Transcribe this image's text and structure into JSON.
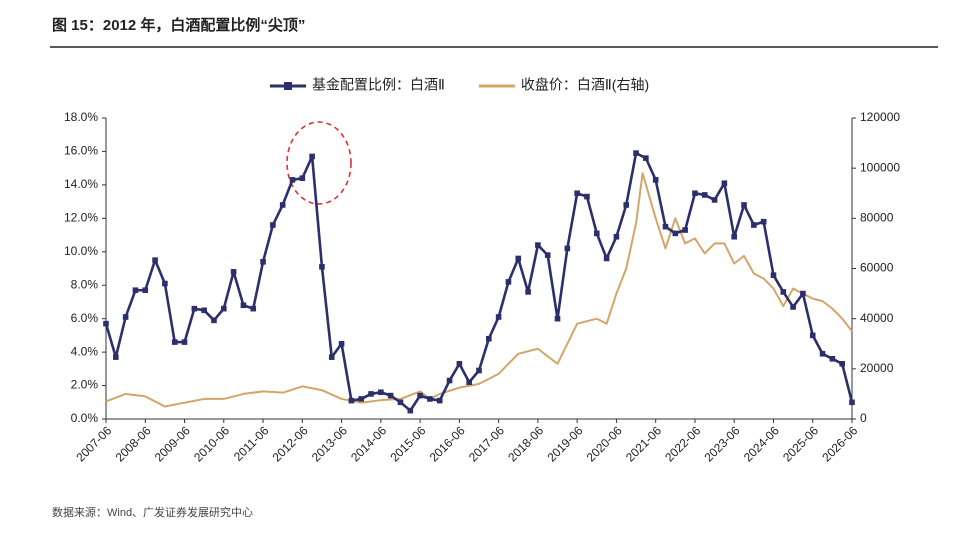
{
  "chart_data": {
    "type": "line",
    "title": "图 15：2012 年，白酒配置比例“尖顶”",
    "source": "数据来源：Wind、广发证券发展研究中心",
    "xlim": [
      "2007-06",
      "2026-06"
    ],
    "xticks": [
      "2007-06",
      "2008-06",
      "2009-06",
      "2010-06",
      "2011-06",
      "2012-06",
      "2013-06",
      "2014-06",
      "2015-06",
      "2016-06",
      "2017-06",
      "2018-06",
      "2019-06",
      "2020-06",
      "2021-06",
      "2022-06",
      "2023-06",
      "2024-06",
      "2025-06",
      "2026-06"
    ],
    "ylim": [
      0,
      18
    ],
    "yticks": [
      {
        "value": 0,
        "label": "0.0%"
      },
      {
        "value": 2,
        "label": "2.0%"
      },
      {
        "value": 4,
        "label": "4.0%"
      },
      {
        "value": 6,
        "label": "6.0%"
      },
      {
        "value": 8,
        "label": "8.0%"
      },
      {
        "value": 10,
        "label": "10.0%"
      },
      {
        "value": 12,
        "label": "12.0%"
      },
      {
        "value": 14,
        "label": "14.0%"
      },
      {
        "value": 16,
        "label": "16.0%"
      },
      {
        "value": 18,
        "label": "18.0%"
      }
    ],
    "y2lim": [
      0,
      120000
    ],
    "y2ticks": [
      0,
      20000,
      40000,
      60000,
      80000,
      100000,
      120000
    ],
    "legend": "top",
    "series": [
      {
        "name": "基金配置比例：白酒Ⅱ",
        "color": "#2b2f6b",
        "marker": "square",
        "x": [
          "2007-06",
          "2007-09",
          "2007-12",
          "2008-03",
          "2008-06",
          "2008-09",
          "2008-12",
          "2009-03",
          "2009-06",
          "2009-09",
          "2009-12",
          "2010-03",
          "2010-06",
          "2010-09",
          "2010-12",
          "2011-03",
          "2011-06",
          "2011-09",
          "2011-12",
          "2012-03",
          "2012-06",
          "2012-09",
          "2012-12",
          "2013-03",
          "2013-06",
          "2013-09",
          "2013-12",
          "2014-03",
          "2014-06",
          "2014-09",
          "2014-12",
          "2015-03",
          "2015-06",
          "2015-09",
          "2015-12",
          "2016-03",
          "2016-06",
          "2016-09",
          "2016-12",
          "2017-03",
          "2017-06",
          "2017-09",
          "2017-12",
          "2018-03",
          "2018-06",
          "2018-09",
          "2018-12",
          "2019-03",
          "2019-06",
          "2019-09",
          "2019-12",
          "2020-03",
          "2020-06",
          "2020-09",
          "2020-12",
          "2021-03",
          "2021-06",
          "2021-09",
          "2021-12",
          "2022-03",
          "2022-06",
          "2022-09",
          "2022-12",
          "2023-03",
          "2023-06",
          "2023-09",
          "2023-12",
          "2024-03",
          "2024-06",
          "2024-09",
          "2024-12",
          "2025-03",
          "2025-06",
          "2025-09",
          "2025-12",
          "2026-03",
          "2026-06"
        ],
        "values": [
          5.7,
          3.7,
          6.1,
          7.7,
          7.7,
          9.5,
          8.1,
          4.6,
          4.6,
          6.6,
          6.5,
          5.9,
          6.6,
          8.8,
          6.8,
          6.6,
          9.4,
          11.6,
          12.8,
          14.3,
          14.4,
          15.7,
          9.1,
          3.7,
          4.5,
          1.1,
          1.2,
          1.5,
          1.6,
          1.4,
          1.0,
          0.5,
          1.4,
          1.2,
          1.1,
          2.3,
          3.3,
          2.2,
          2.9,
          4.8,
          6.1,
          8.2,
          9.6,
          7.6,
          10.4,
          9.8,
          6.0,
          10.2,
          13.5,
          13.3,
          11.1,
          9.6,
          10.9,
          12.8,
          15.9,
          15.6,
          14.3,
          11.5,
          11.1,
          11.3,
          13.5,
          13.4,
          13.1,
          14.1,
          10.9,
          12.8,
          11.6,
          11.8,
          8.6,
          7.6,
          6.7,
          7.5,
          5.0,
          3.9,
          3.6,
          3.3,
          1.0
        ]
      },
      {
        "name": "收盘价：白酒Ⅱ(右轴)",
        "color": "#d4a56a",
        "axis": "y2",
        "x": [
          "2007-06",
          "2007-12",
          "2008-06",
          "2008-12",
          "2009-06",
          "2009-12",
          "2010-06",
          "2010-12",
          "2011-06",
          "2011-12",
          "2012-06",
          "2012-12",
          "2013-06",
          "2013-12",
          "2014-06",
          "2014-12",
          "2015-06",
          "2015-09",
          "2015-12",
          "2016-06",
          "2016-12",
          "2017-06",
          "2017-12",
          "2018-06",
          "2018-12",
          "2019-06",
          "2019-12",
          "2020-03",
          "2020-06",
          "2020-09",
          "2020-12",
          "2021-02",
          "2021-06",
          "2021-09",
          "2021-12",
          "2022-03",
          "2022-06",
          "2022-09",
          "2022-12",
          "2023-03",
          "2023-06",
          "2023-09",
          "2023-12",
          "2024-03",
          "2024-06",
          "2024-09",
          "2024-12",
          "2025-03",
          "2025-06",
          "2025-09",
          "2025-12",
          "2026-03",
          "2026-06"
        ],
        "values": [
          7000,
          10000,
          9000,
          5000,
          6500,
          8000,
          8000,
          10000,
          11000,
          10500,
          13000,
          11500,
          8000,
          6500,
          7500,
          8000,
          11000,
          8000,
          10000,
          12500,
          14000,
          18000,
          26000,
          28000,
          22000,
          38000,
          40000,
          38000,
          50000,
          60000,
          78000,
          98000,
          80000,
          68000,
          80000,
          70000,
          72000,
          66000,
          70000,
          70000,
          62000,
          65000,
          58000,
          56000,
          52000,
          45000,
          52000,
          50000,
          48000,
          47000,
          44000,
          40000,
          35000
        ]
      }
    ]
  }
}
